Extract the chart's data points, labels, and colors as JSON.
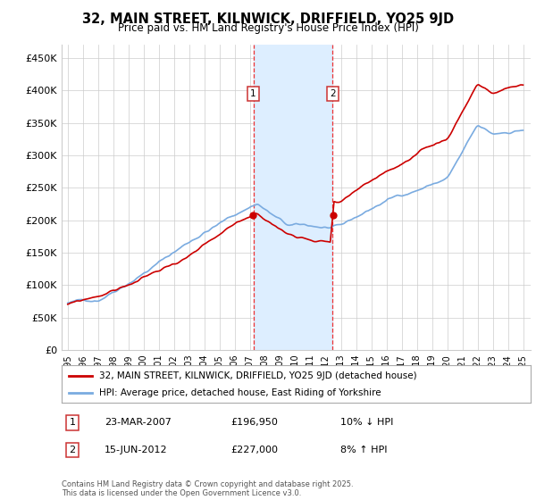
{
  "title": "32, MAIN STREET, KILNWICK, DRIFFIELD, YO25 9JD",
  "subtitle": "Price paid vs. HM Land Registry's House Price Index (HPI)",
  "ylabel_ticks": [
    "£0",
    "£50K",
    "£100K",
    "£150K",
    "£200K",
    "£250K",
    "£300K",
    "£350K",
    "£400K",
    "£450K"
  ],
  "ytick_vals": [
    0,
    50000,
    100000,
    150000,
    200000,
    250000,
    300000,
    350000,
    400000,
    450000
  ],
  "ylim": [
    0,
    470000
  ],
  "legend_line1": "32, MAIN STREET, KILNWICK, DRIFFIELD, YO25 9JD (detached house)",
  "legend_line2": "HPI: Average price, detached house, East Riding of Yorkshire",
  "red_line_color": "#cc0000",
  "blue_line_color": "#7aabe0",
  "blue_fill_color": "#ddeeff",
  "marker1_year": 2007.23,
  "marker2_year": 2012.46,
  "sale1_price": 196950,
  "sale2_price": 227000,
  "table_row1": [
    "1",
    "23-MAR-2007",
    "£196,950",
    "10% ↓ HPI"
  ],
  "table_row2": [
    "2",
    "15-JUN-2012",
    "£227,000",
    "8% ↑ HPI"
  ],
  "footer": "Contains HM Land Registry data © Crown copyright and database right 2025.\nThis data is licensed under the Open Government Licence v3.0.",
  "background_color": "#ffffff",
  "grid_color": "#cccccc"
}
